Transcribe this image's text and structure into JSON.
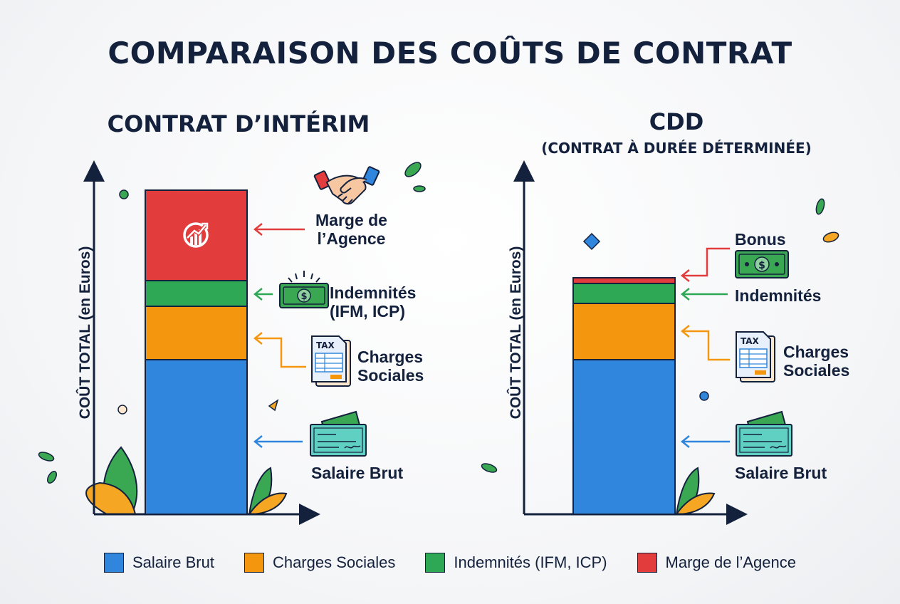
{
  "title": "COMPARAISON DES COÛTS DE CONTRAT",
  "colors": {
    "salaire": "#2f86dc",
    "charges": "#f5960f",
    "indemnites": "#2fa856",
    "marge": "#e23c3c",
    "axis": "#14213d"
  },
  "chart_data": [
    {
      "type": "bar",
      "stacked": true,
      "title": "CONTRAT D’INTÉRIM",
      "subtitle": "",
      "ylabel": "COÛT TOTAL (en Euros)",
      "series": [
        {
          "name": "Salaire Brut",
          "value": 217
        },
        {
          "name": "Charges Sociales",
          "value": 75
        },
        {
          "name": "Indemnités (IFM, ICP)",
          "value": 36
        },
        {
          "name": "Marge de l’Agence",
          "value": 127
        }
      ],
      "annotations": [
        "Marge de l’Agence",
        "Indemnités (IFM, ICP)",
        "Charges Sociales",
        "Salaire Brut"
      ]
    },
    {
      "type": "bar",
      "stacked": true,
      "title": "CDD",
      "subtitle": "(CONTRAT À DURÉE DÉTERMINÉE)",
      "ylabel": "COÛT TOTAL (en Euros)",
      "series": [
        {
          "name": "Salaire Brut",
          "value": 217
        },
        {
          "name": "Charges Sociales",
          "value": 79
        },
        {
          "name": "Indemnités",
          "value": 28
        },
        {
          "name": "Bonus",
          "value": 8
        }
      ],
      "annotations": [
        "Bonus",
        "Indemnités",
        "Charges Sociales",
        "Salaire Brut"
      ]
    }
  ],
  "labels": {
    "left": {
      "marge": [
        "Marge de",
        "l’Agence"
      ],
      "indemnites": [
        "Indemnités",
        "(IFM, ICP)"
      ],
      "charges": [
        "Charges",
        "Sociales"
      ],
      "salaire": "Salaire Brut"
    },
    "right": {
      "bonus": "Bonus",
      "indemnites": "Indemnités",
      "charges": [
        "Charges",
        "Sociales"
      ],
      "salaire": "Salaire Brut"
    }
  },
  "icons": {
    "handshake": "handshake-icon",
    "money": "money-bill-icon",
    "tax": "tax-form-icon",
    "cheque": "cheque-icon",
    "growth": "growth-chart-icon"
  },
  "legend": [
    {
      "label": "Salaire Brut",
      "color": "#2f86dc"
    },
    {
      "label": "Charges Sociales",
      "color": "#f5960f"
    },
    {
      "label": "Indemnités (IFM, ICP)",
      "color": "#2fa856"
    },
    {
      "label": "Marge de l’Agence",
      "color": "#e23c3c"
    }
  ]
}
